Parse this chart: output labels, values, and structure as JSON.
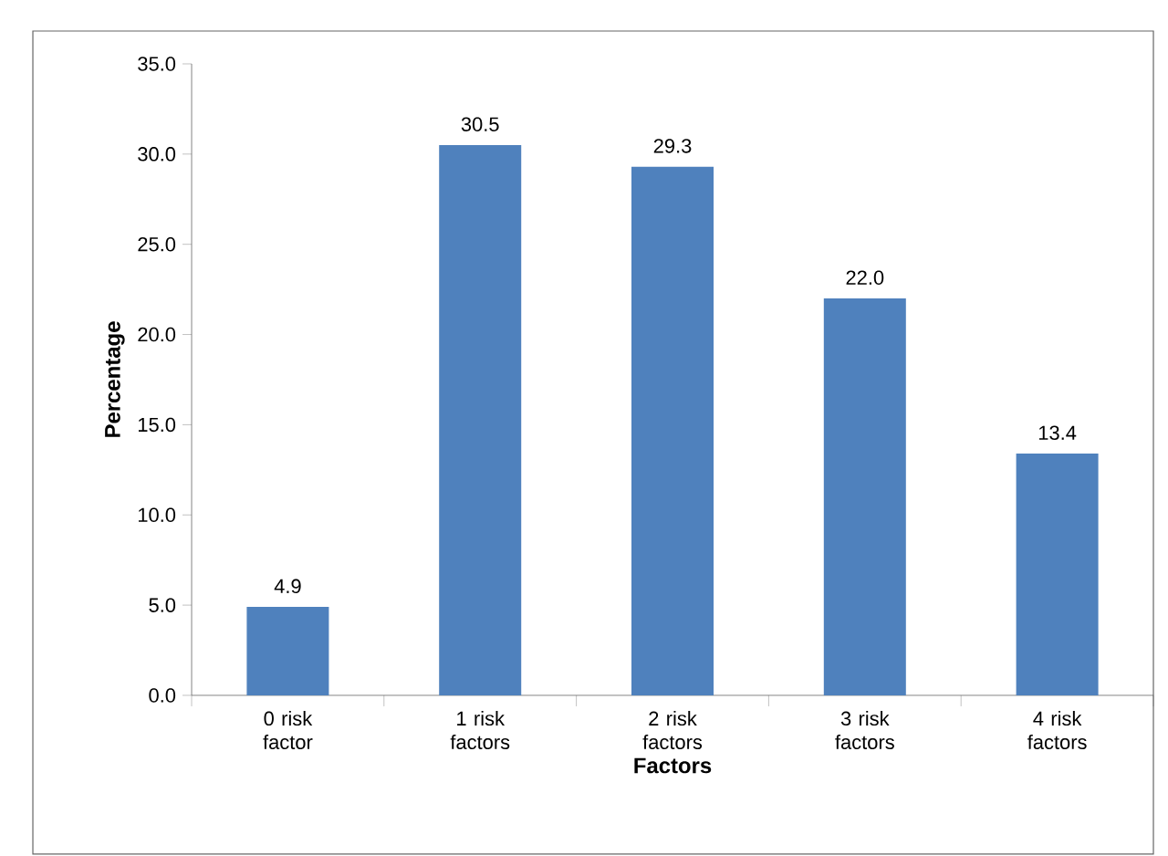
{
  "chart_data": {
    "type": "bar",
    "xlabel": "Factors",
    "ylabel": "Percentage",
    "categories": [
      "0 risk factor",
      "1 risk factors",
      "2 risk factors",
      "3 risk factors",
      "4 risk factors"
    ],
    "values": [
      4.9,
      30.5,
      29.3,
      22.0,
      13.4
    ],
    "value_labels": [
      "4.9",
      "30.5",
      "29.3",
      "22.0",
      "13.4"
    ],
    "color": "#4f81bd",
    "ylim": [
      0,
      35
    ],
    "yticks": [
      {
        "value": 0,
        "label": "0.0"
      },
      {
        "value": 5,
        "label": "5.0"
      },
      {
        "value": 10,
        "label": "10.0"
      },
      {
        "value": 15,
        "label": "15.0"
      },
      {
        "value": 20,
        "label": "20.0"
      },
      {
        "value": 25,
        "label": "25.0"
      },
      {
        "value": 30,
        "label": "30.0"
      },
      {
        "value": 35,
        "label": "35.0"
      }
    ],
    "grid": false
  }
}
